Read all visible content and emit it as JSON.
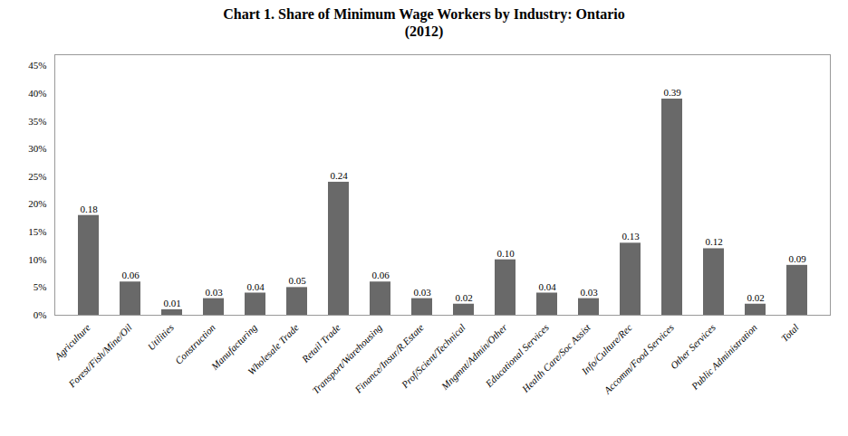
{
  "chart_data": {
    "type": "bar",
    "title": "Chart 1. Share of Minimum Wage Workers by Industry: Ontario\n(2012)",
    "categories": [
      "Agriculture",
      "Forest/Fish/Mine/Oil",
      "Utilities",
      "Construction",
      "Manufacturing",
      "Wholesale Trade",
      "Retail Trade",
      "Transport/Warehousing",
      "Finance/Insur/R.Estate",
      "Prof/Scient/Technical",
      "Mngmnt/Admin/Other",
      "Educational Services",
      "Health Care/Soc Assist",
      "Info/Culture/Rec",
      "Accomm/Food Services",
      "Other Services",
      "Public Administration",
      "Total"
    ],
    "values": [
      0.18,
      0.06,
      0.01,
      0.03,
      0.04,
      0.05,
      0.24,
      0.06,
      0.03,
      0.02,
      0.1,
      0.04,
      0.03,
      0.13,
      0.39,
      0.12,
      0.02,
      0.09
    ],
    "value_labels": [
      "0.18",
      "0.06",
      "0.01",
      "0.03",
      "0.04",
      "0.05",
      "0.24",
      "0.06",
      "0.03",
      "0.02",
      "0.10",
      "0.04",
      "0.03",
      "0.13",
      "0.39",
      "0.12",
      "0.02",
      "0.09"
    ],
    "data_labels": true,
    "color": "#696969",
    "ylim": [
      0,
      0.47
    ],
    "yticks": [
      {
        "value": 0.0,
        "label": "0%"
      },
      {
        "value": 0.05,
        "label": "5%"
      },
      {
        "value": 0.1,
        "label": "10%"
      },
      {
        "value": 0.15,
        "label": "15%"
      },
      {
        "value": 0.2,
        "label": "20%"
      },
      {
        "value": 0.25,
        "label": "25%"
      },
      {
        "value": 0.3,
        "label": "30%"
      },
      {
        "value": 0.35,
        "label": "35%"
      },
      {
        "value": 0.4,
        "label": "40%"
      },
      {
        "value": 0.45,
        "label": "45%"
      }
    ],
    "grid": false
  }
}
